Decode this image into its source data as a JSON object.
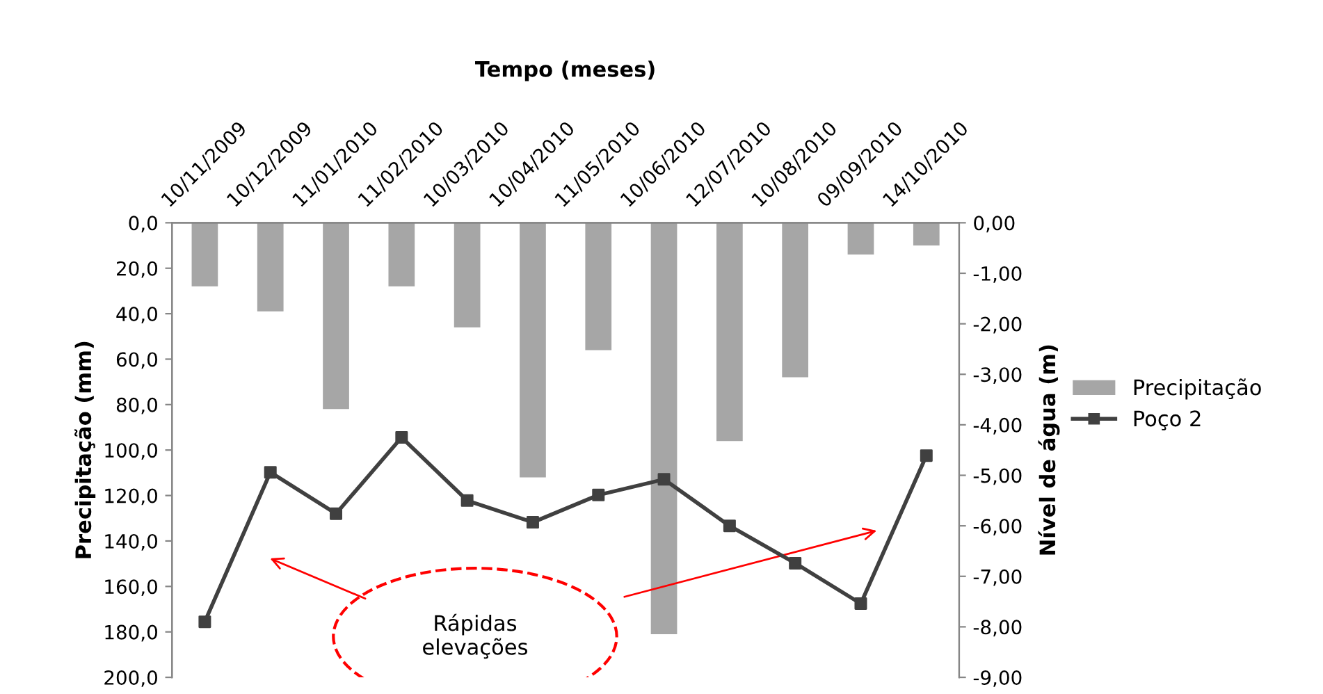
{
  "chart_data": {
    "type": "bar",
    "xlabel": "Tempo (meses)",
    "ylabel": "Precipitação (mm)",
    "y2label": "Nível de água (m)",
    "categories": [
      "10/11/2009",
      "10/12/2009",
      "11/01/2010",
      "11/02/2010",
      "10/03/2010",
      "10/04/2010",
      "11/05/2010",
      "10/06/2010",
      "12/07/2010",
      "10/08/2010",
      "09/09/2010",
      "14/10/2010"
    ],
    "series": [
      {
        "name": "Precipitação",
        "color": "#a6a6a6",
        "values": [
          28,
          39,
          82,
          28,
          46,
          112,
          56,
          181,
          96,
          68,
          14,
          10
        ]
      },
      {
        "name": "Poço 2",
        "type": "line",
        "axis": "y2",
        "color": "#404040",
        "values": [
          -7.9,
          -4.94,
          -5.76,
          -4.25,
          -5.5,
          -5.93,
          -5.39,
          -5.08,
          -6.0,
          -6.74,
          -7.54,
          -4.61
        ]
      }
    ],
    "ylim": [
      200,
      0
    ],
    "yticks": [
      {
        "value": 0,
        "label": "0,0"
      },
      {
        "value": 20,
        "label": "20,0"
      },
      {
        "value": 40,
        "label": "40,0"
      },
      {
        "value": 60,
        "label": "60,0"
      },
      {
        "value": 80,
        "label": "80,0"
      },
      {
        "value": 100,
        "label": "100,0"
      },
      {
        "value": 120,
        "label": "120,0"
      },
      {
        "value": 140,
        "label": "140,0"
      },
      {
        "value": 160,
        "label": "160,0"
      },
      {
        "value": 180,
        "label": "180,0"
      },
      {
        "value": 200,
        "label": "200,0"
      }
    ],
    "y2lim": [
      -9,
      0
    ],
    "y2ticks": [
      {
        "value": 0,
        "label": "0,00"
      },
      {
        "value": -1,
        "label": "-1,00"
      },
      {
        "value": -2,
        "label": "-2,00"
      },
      {
        "value": -3,
        "label": "-3,00"
      },
      {
        "value": -4,
        "label": "-4,00"
      },
      {
        "value": -5,
        "label": "-5,00"
      },
      {
        "value": -6,
        "label": "-6,00"
      },
      {
        "value": -7,
        "label": "-7,00"
      },
      {
        "value": -8,
        "label": "-8,00"
      },
      {
        "value": -9,
        "label": "-9,00"
      }
    ],
    "annotations": [
      "Rápidas\nelevações"
    ],
    "marker": "square",
    "legend": "right",
    "grid": false
  }
}
